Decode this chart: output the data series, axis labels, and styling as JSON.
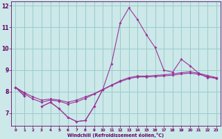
{
  "xlabel": "Windchill (Refroidissement éolien,°C)",
  "background_color": "#cce8e8",
  "grid_color": "#99cccc",
  "line_color": "#993399",
  "x": [
    0,
    1,
    2,
    3,
    4,
    5,
    6,
    7,
    8,
    9,
    10,
    11,
    12,
    13,
    14,
    15,
    16,
    17,
    18,
    19,
    20,
    21,
    22,
    23
  ],
  "line_main": [
    8.2,
    7.8,
    null,
    7.3,
    7.5,
    7.2,
    6.8,
    6.6,
    6.65,
    7.3,
    8.1,
    9.3,
    11.2,
    11.9,
    11.35,
    10.65,
    10.05,
    9.0,
    8.9,
    9.5,
    9.2,
    8.85,
    8.65,
    8.65
  ],
  "line_short": [
    8.2,
    7.8,
    null,
    7.3,
    7.5,
    7.2,
    6.8,
    6.6,
    6.65,
    7.3,
    8.1,
    null,
    null,
    null,
    null,
    null,
    null,
    null,
    null,
    null,
    null,
    null,
    null,
    null
  ],
  "line_upper": [
    8.2,
    7.95,
    7.75,
    7.6,
    7.65,
    7.6,
    7.5,
    7.6,
    7.75,
    7.9,
    8.1,
    8.3,
    8.5,
    8.65,
    8.72,
    8.72,
    8.75,
    8.78,
    8.82,
    8.88,
    8.92,
    8.85,
    8.75,
    8.65
  ],
  "line_lower": [
    8.2,
    7.9,
    7.65,
    7.5,
    7.6,
    7.55,
    7.42,
    7.52,
    7.68,
    7.88,
    8.08,
    8.28,
    8.46,
    8.6,
    8.68,
    8.68,
    8.7,
    8.73,
    8.76,
    8.82,
    8.86,
    8.8,
    8.7,
    8.6
  ],
  "ylim": [
    6.4,
    12.2
  ],
  "yticks": [
    7,
    8,
    9,
    10,
    11,
    12
  ],
  "xlim": [
    -0.5,
    23.5
  ]
}
